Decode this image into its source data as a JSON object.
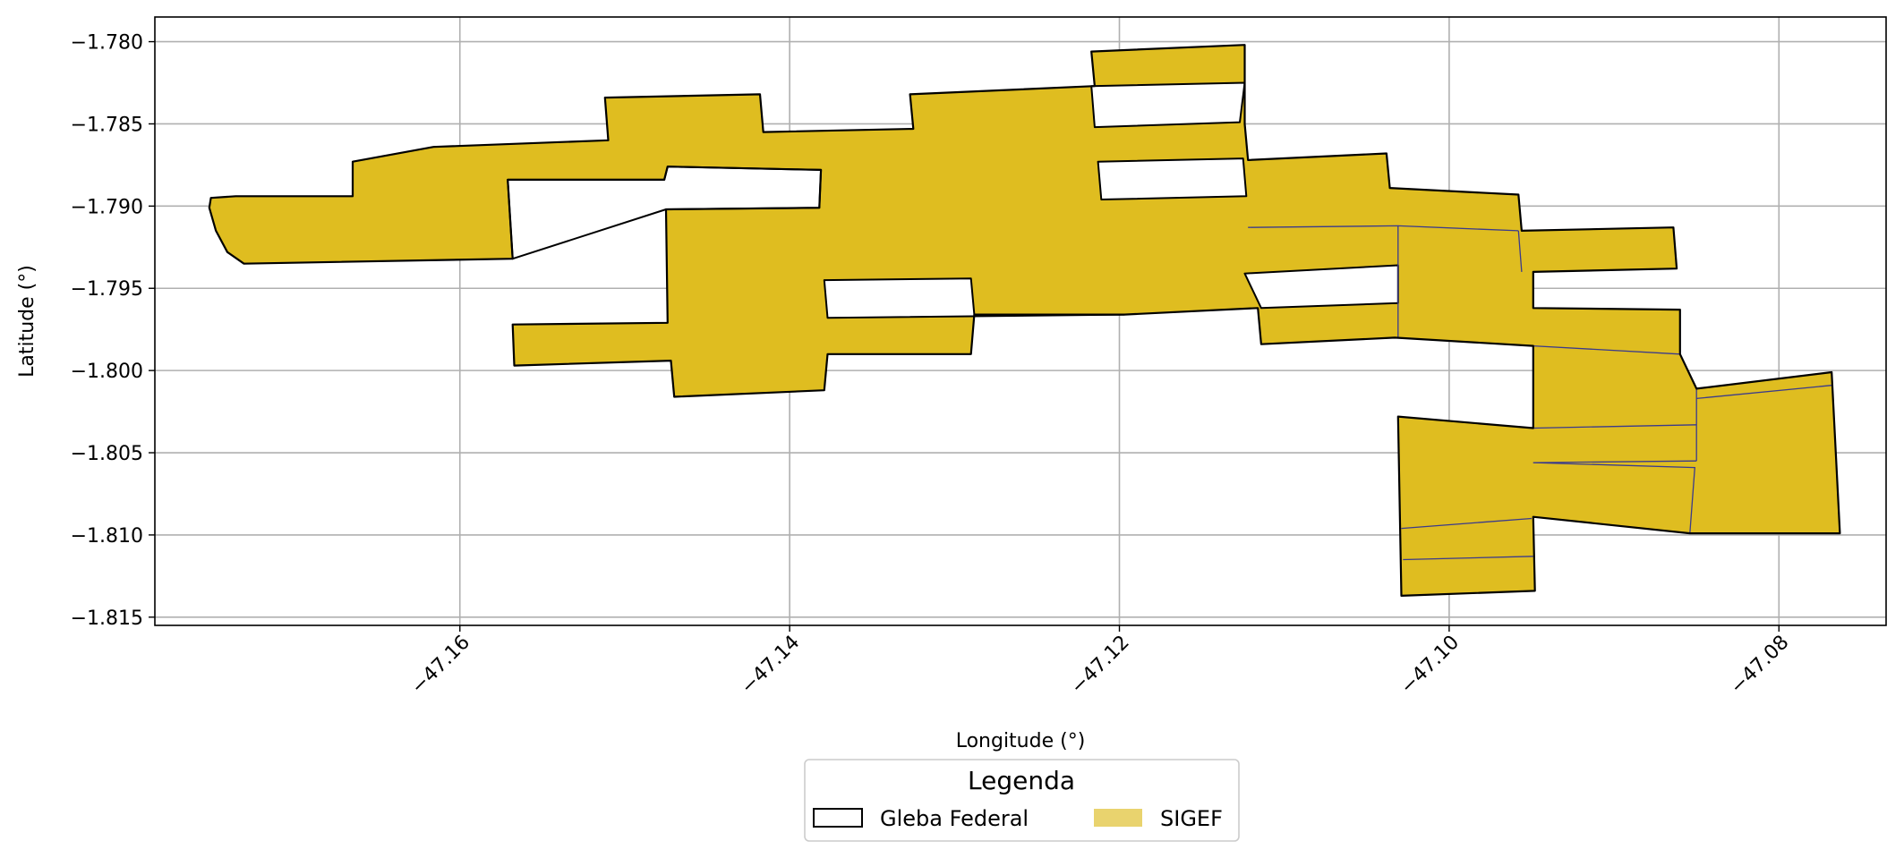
{
  "chart_data": {
    "type": "map",
    "xlabel": "Longitude (°)",
    "ylabel": "Latitude (°)",
    "xlim": [
      -47.1785,
      -47.0735
    ],
    "ylim": [
      -1.8155,
      -1.7785
    ],
    "xticks": [
      -47.16,
      -47.14,
      -47.12,
      -47.1,
      -47.08
    ],
    "xtick_labels": [
      "−47.16",
      "−47.14",
      "−47.12",
      "−47.10",
      "−47.08"
    ],
    "yticks": [
      -1.78,
      -1.785,
      -1.79,
      -1.795,
      -1.8,
      -1.805,
      -1.81,
      -1.815
    ],
    "ytick_labels": [
      "−1.780",
      "−1.785",
      "−1.790",
      "−1.795",
      "−1.800",
      "−1.805",
      "−1.810",
      "−1.815"
    ],
    "grid": true,
    "legend": {
      "title": "Legenda",
      "placement": "bottom-center",
      "entries": [
        {
          "label": "Gleba Federal",
          "style": "outline",
          "color": "#000000"
        },
        {
          "label": "SIGEF",
          "style": "fill",
          "color": "#E9D36E"
        }
      ]
    },
    "colors": {
      "sigef_fill": "#DFBD20",
      "gleba_edge": "#000000",
      "parcel_edge": "#3A3A8C",
      "grid": "#B0B0B0"
    },
    "layers": [
      {
        "name": "SIGEF",
        "polygons": [
          [
            [
              -47.1751,
              -1.7895
            ],
            [
              -47.1736,
              -1.7894
            ],
            [
              -47.1665,
              -1.7894
            ],
            [
              -47.1665,
              -1.7873
            ],
            [
              -47.1616,
              -1.7864
            ],
            [
              -47.151,
              -1.786
            ],
            [
              -47.1512,
              -1.7834
            ],
            [
              -47.1418,
              -1.7832
            ],
            [
              -47.1416,
              -1.7855
            ],
            [
              -47.1325,
              -1.7853
            ],
            [
              -47.1327,
              -1.7832
            ],
            [
              -47.1215,
              -1.7827
            ],
            [
              -47.1217,
              -1.7806
            ],
            [
              -47.1124,
              -1.7802
            ],
            [
              -47.1124,
              -1.785
            ],
            [
              -47.1122,
              -1.7872
            ],
            [
              -47.1038,
              -1.7868
            ],
            [
              -47.1036,
              -1.7889
            ],
            [
              -47.0958,
              -1.7893
            ],
            [
              -47.0956,
              -1.7915
            ],
            [
              -47.0864,
              -1.7913
            ],
            [
              -47.0862,
              -1.7938
            ],
            [
              -47.0949,
              -1.794
            ],
            [
              -47.0949,
              -1.7962
            ],
            [
              -47.086,
              -1.7963
            ],
            [
              -47.086,
              -1.799
            ],
            [
              -47.085,
              -1.8011
            ],
            [
              -47.0768,
              -1.8001
            ],
            [
              -47.0763,
              -1.8099
            ],
            [
              -47.0854,
              -1.8099
            ],
            [
              -47.0949,
              -1.8089
            ],
            [
              -47.0948,
              -1.8134
            ],
            [
              -47.1029,
              -1.8137
            ],
            [
              -47.1031,
              -1.8028
            ],
            [
              -47.0949,
              -1.8035
            ],
            [
              -47.0949,
              -1.7985
            ],
            [
              -47.1033,
              -1.798
            ],
            [
              -47.1114,
              -1.7984
            ],
            [
              -47.1116,
              -1.7962
            ],
            [
              -47.1197,
              -1.7966
            ],
            [
              -47.1288,
              -1.7966
            ],
            [
              -47.129,
              -1.799
            ],
            [
              -47.1377,
              -1.799
            ],
            [
              -47.1379,
              -1.8012
            ],
            [
              -47.147,
              -1.8016
            ],
            [
              -47.1472,
              -1.7994
            ],
            [
              -47.1567,
              -1.7997
            ],
            [
              -47.1568,
              -1.7972
            ],
            [
              -47.1474,
              -1.7971
            ],
            [
              -47.1475,
              -1.7902
            ],
            [
              -47.1382,
              -1.7901
            ],
            [
              -47.1381,
              -1.7878
            ],
            [
              -47.1474,
              -1.7876
            ],
            [
              -47.1476,
              -1.7884
            ],
            [
              -47.1571,
              -1.7884
            ],
            [
              -47.1568,
              -1.7932
            ],
            [
              -47.1731,
              -1.7935
            ],
            [
              -47.1741,
              -1.7928
            ],
            [
              -47.1748,
              -1.7915
            ],
            [
              -47.1752,
              -1.7901
            ]
          ]
        ]
      },
      {
        "name": "Gleba Federal",
        "polygons": [
          [
            [
              -47.1751,
              -1.7895
            ],
            [
              -47.1736,
              -1.7894
            ],
            [
              -47.1665,
              -1.7894
            ],
            [
              -47.1665,
              -1.7873
            ],
            [
              -47.1616,
              -1.7864
            ],
            [
              -47.151,
              -1.786
            ],
            [
              -47.1512,
              -1.7834
            ],
            [
              -47.1418,
              -1.7832
            ],
            [
              -47.1416,
              -1.7855
            ],
            [
              -47.1325,
              -1.7853
            ],
            [
              -47.1327,
              -1.7832
            ],
            [
              -47.1215,
              -1.7827
            ],
            [
              -47.1217,
              -1.7806
            ],
            [
              -47.1124,
              -1.7802
            ],
            [
              -47.1124,
              -1.785
            ],
            [
              -47.1122,
              -1.7872
            ],
            [
              -47.1038,
              -1.7868
            ],
            [
              -47.1036,
              -1.7889
            ],
            [
              -47.0958,
              -1.7893
            ],
            [
              -47.0956,
              -1.7915
            ],
            [
              -47.0864,
              -1.7913
            ],
            [
              -47.0862,
              -1.7938
            ],
            [
              -47.0949,
              -1.794
            ],
            [
              -47.0949,
              -1.7962
            ],
            [
              -47.086,
              -1.7963
            ],
            [
              -47.086,
              -1.799
            ],
            [
              -47.085,
              -1.8011
            ],
            [
              -47.0768,
              -1.8001
            ],
            [
              -47.0763,
              -1.8099
            ],
            [
              -47.0854,
              -1.8099
            ],
            [
              -47.0949,
              -1.8089
            ],
            [
              -47.0948,
              -1.8134
            ],
            [
              -47.1029,
              -1.8137
            ],
            [
              -47.1031,
              -1.8028
            ],
            [
              -47.0949,
              -1.8035
            ],
            [
              -47.0949,
              -1.7985
            ],
            [
              -47.1033,
              -1.798
            ],
            [
              -47.1114,
              -1.7984
            ],
            [
              -47.1116,
              -1.7962
            ],
            [
              -47.1197,
              -1.7966
            ],
            [
              -47.1288,
              -1.7966
            ],
            [
              -47.129,
              -1.799
            ],
            [
              -47.1377,
              -1.799
            ],
            [
              -47.1379,
              -1.8012
            ],
            [
              -47.147,
              -1.8016
            ],
            [
              -47.1472,
              -1.7994
            ],
            [
              -47.1567,
              -1.7997
            ],
            [
              -47.1568,
              -1.7972
            ],
            [
              -47.1474,
              -1.7971
            ],
            [
              -47.1475,
              -1.7902
            ],
            [
              -47.1382,
              -1.7901
            ],
            [
              -47.1381,
              -1.7878
            ],
            [
              -47.1474,
              -1.7876
            ],
            [
              -47.1476,
              -1.7884
            ],
            [
              -47.1571,
              -1.7884
            ],
            [
              -47.1568,
              -1.7932
            ],
            [
              -47.1731,
              -1.7935
            ],
            [
              -47.1741,
              -1.7928
            ],
            [
              -47.1748,
              -1.7915
            ],
            [
              -47.1752,
              -1.7901
            ]
          ]
        ]
      },
      {
        "name": "holes",
        "polygons": [
          [
            [
              -47.1381,
              -1.7878
            ],
            [
              -47.1474,
              -1.7876
            ],
            [
              -47.1476,
              -1.7884
            ],
            [
              -47.1571,
              -1.7884
            ],
            [
              -47.1568,
              -1.7932
            ],
            [
              -47.1475,
              -1.7902
            ],
            [
              -47.1382,
              -1.7901
            ]
          ],
          [
            [
              -47.1379,
              -1.7945
            ],
            [
              -47.129,
              -1.7944
            ],
            [
              -47.1288,
              -1.7966
            ],
            [
              -47.1197,
              -1.7966
            ],
            [
              -47.1377,
              -1.7968
            ]
          ],
          [
            [
              -47.1215,
              -1.7852
            ],
            [
              -47.1127,
              -1.7849
            ],
            [
              -47.1124,
              -1.7825
            ],
            [
              -47.1217,
              -1.7827
            ]
          ],
          [
            [
              -47.1213,
              -1.7873
            ],
            [
              -47.1125,
              -1.7871
            ],
            [
              -47.1123,
              -1.7894
            ],
            [
              -47.1211,
              -1.7896
            ]
          ],
          [
            [
              -47.1124,
              -1.7941
            ],
            [
              -47.1031,
              -1.7936
            ],
            [
              -47.1031,
              -1.7959
            ],
            [
              -47.1114,
              -1.7962
            ]
          ]
        ]
      },
      {
        "name": "parcels",
        "lines": [
          [
            [
              -47.1122,
              -1.7913
            ],
            [
              -47.1031,
              -1.7912
            ],
            [
              -47.0958,
              -1.7915
            ]
          ],
          [
            [
              -47.0958,
              -1.7915
            ],
            [
              -47.0956,
              -1.794
            ]
          ],
          [
            [
              -47.1031,
              -1.7912
            ],
            [
              -47.1031,
              -1.798
            ]
          ],
          [
            [
              -47.0949,
              -1.7985
            ],
            [
              -47.086,
              -1.799
            ]
          ],
          [
            [
              -47.0949,
              -1.8035
            ],
            [
              -47.085,
              -1.8033
            ]
          ],
          [
            [
              -47.085,
              -1.8011
            ],
            [
              -47.085,
              -1.8055
            ]
          ],
          [
            [
              -47.0949,
              -1.8056
            ],
            [
              -47.085,
              -1.8055
            ]
          ],
          [
            [
              -47.0949,
              -1.8056
            ],
            [
              -47.0851,
              -1.8059
            ],
            [
              -47.0854,
              -1.8099
            ]
          ],
          [
            [
              -47.085,
              -1.8017
            ],
            [
              -47.0768,
              -1.8009
            ]
          ],
          [
            [
              -47.1029,
              -1.8096
            ],
            [
              -47.095,
              -1.809
            ]
          ],
          [
            [
              -47.1028,
              -1.8115
            ],
            [
              -47.0949,
              -1.8113
            ]
          ]
        ]
      }
    ]
  }
}
